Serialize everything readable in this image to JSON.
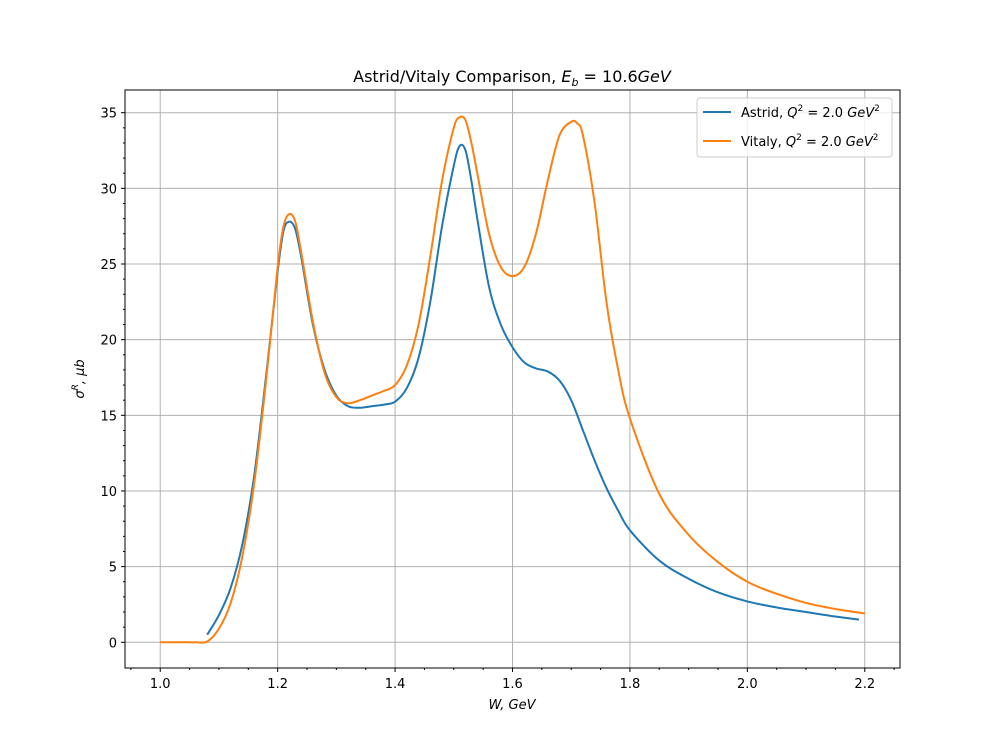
{
  "chart_data": {
    "type": "line",
    "title": "Astrid/Vitaly Comparison, E_b = 10.6GeV",
    "title_parts": {
      "prefix": "Astrid/Vitaly Comparison, ",
      "var": "E",
      "sub": "b",
      "suffix": " = 10.6",
      "unit": "GeV"
    },
    "xlabel": "W, GeV",
    "ylabel": "σ^R, μb",
    "xlim": [
      0.94,
      2.26
    ],
    "ylim": [
      -1.7,
      36.5
    ],
    "x_ticks": [
      1.0,
      1.2,
      1.4,
      1.6,
      1.8,
      2.0,
      2.2
    ],
    "x_tick_labels": [
      "1.0",
      "1.2",
      "1.4",
      "1.6",
      "1.8",
      "2.0",
      "2.2"
    ],
    "y_ticks": [
      0,
      5,
      10,
      15,
      20,
      25,
      30,
      35
    ],
    "y_tick_labels": [
      "0",
      "5",
      "10",
      "15",
      "20",
      "25",
      "30",
      "35"
    ],
    "grid": true,
    "legend_position": "top-right",
    "series": [
      {
        "name": "Astrid, Q^2 = 2.0 GeV^2",
        "legend": {
          "prefix": "Astrid, ",
          "var": "Q",
          "sup": "2",
          "mid": " = 2.0 ",
          "unit": "GeV",
          "unit_sup": "2"
        },
        "color": "#1f77b4",
        "x": [
          1.08,
          1.1,
          1.12,
          1.14,
          1.16,
          1.18,
          1.2,
          1.21,
          1.22,
          1.23,
          1.24,
          1.26,
          1.28,
          1.3,
          1.32,
          1.34,
          1.36,
          1.38,
          1.4,
          1.42,
          1.44,
          1.46,
          1.48,
          1.5,
          1.51,
          1.52,
          1.53,
          1.54,
          1.56,
          1.58,
          1.6,
          1.62,
          1.64,
          1.66,
          1.68,
          1.7,
          1.72,
          1.74,
          1.76,
          1.78,
          1.8,
          1.85,
          1.9,
          1.95,
          2.0,
          2.05,
          2.1,
          2.15,
          2.19
        ],
        "y": [
          0.5,
          1.8,
          3.6,
          6.5,
          11.0,
          17.5,
          24.5,
          27.2,
          27.8,
          27.3,
          25.5,
          21.0,
          18.0,
          16.3,
          15.6,
          15.5,
          15.6,
          15.7,
          15.9,
          16.8,
          18.8,
          22.5,
          27.5,
          31.5,
          32.8,
          32.5,
          30.5,
          28.0,
          23.5,
          21.0,
          19.5,
          18.5,
          18.1,
          17.9,
          17.3,
          16.0,
          14.0,
          12.0,
          10.2,
          8.7,
          7.4,
          5.4,
          4.2,
          3.3,
          2.7,
          2.3,
          2.0,
          1.7,
          1.5
        ]
      },
      {
        "name": "Vitaly, Q^2 = 2.0 GeV^2",
        "legend": {
          "prefix": "Vitaly, ",
          "var": "Q",
          "sup": "2",
          "mid": " = 2.0 ",
          "unit": "GeV",
          "unit_sup": "2"
        },
        "color": "#ff7f0e",
        "x": [
          1.0,
          1.02,
          1.04,
          1.06,
          1.08,
          1.1,
          1.12,
          1.14,
          1.16,
          1.18,
          1.2,
          1.21,
          1.22,
          1.23,
          1.24,
          1.26,
          1.28,
          1.3,
          1.32,
          1.34,
          1.36,
          1.38,
          1.4,
          1.42,
          1.44,
          1.46,
          1.48,
          1.5,
          1.51,
          1.52,
          1.53,
          1.54,
          1.56,
          1.58,
          1.6,
          1.62,
          1.64,
          1.66,
          1.68,
          1.7,
          1.71,
          1.72,
          1.74,
          1.76,
          1.78,
          1.8,
          1.85,
          1.9,
          1.95,
          2.0,
          2.05,
          2.1,
          2.15,
          2.2
        ],
        "y": [
          0.0,
          0.0,
          0.0,
          0.0,
          0.05,
          0.9,
          2.6,
          5.7,
          10.5,
          17.2,
          24.8,
          27.5,
          28.3,
          27.8,
          25.8,
          21.2,
          17.8,
          16.2,
          15.8,
          16.0,
          16.3,
          16.6,
          17.0,
          18.3,
          21.0,
          25.5,
          30.5,
          34.0,
          34.7,
          34.5,
          33.0,
          31.0,
          27.0,
          24.8,
          24.2,
          24.8,
          27.0,
          30.5,
          33.5,
          34.4,
          34.3,
          33.5,
          29.0,
          22.5,
          18.0,
          14.8,
          9.8,
          7.1,
          5.3,
          4.0,
          3.2,
          2.6,
          2.2,
          1.9
        ]
      }
    ]
  }
}
